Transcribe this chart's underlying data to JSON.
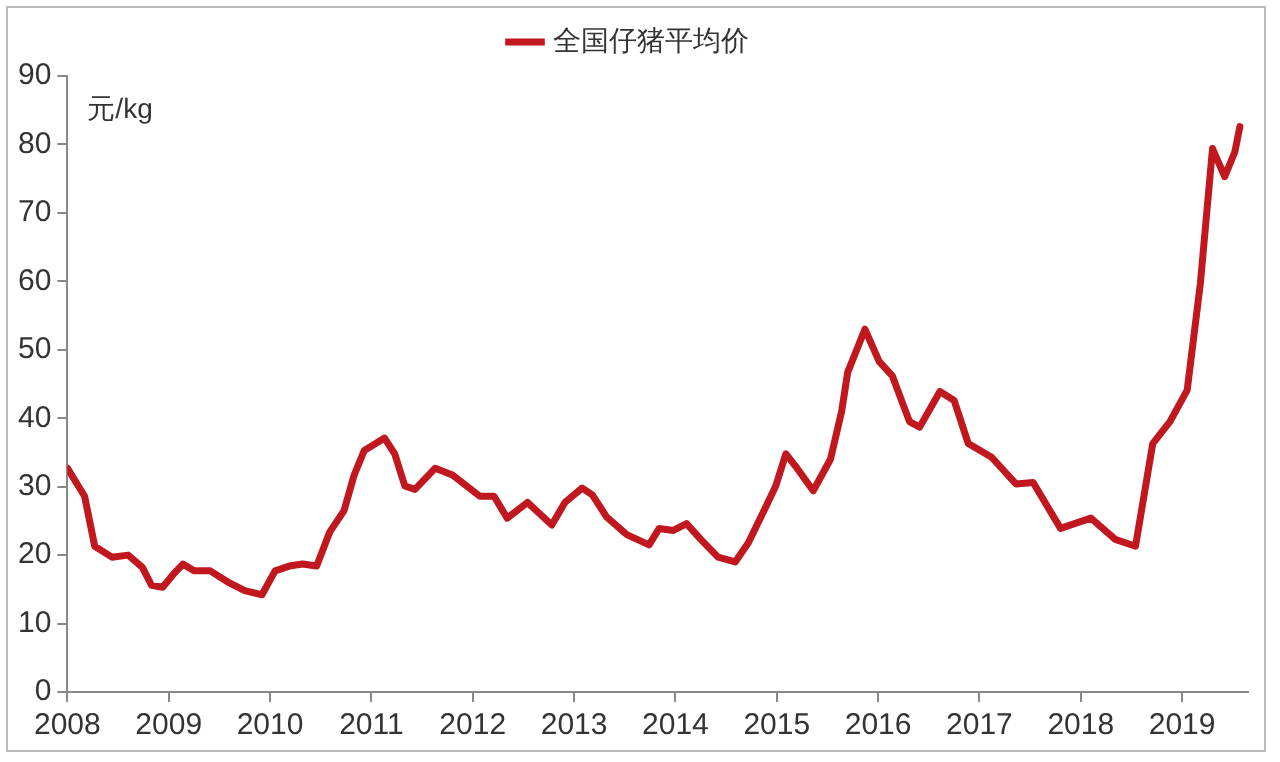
{
  "chart_data": {
    "type": "line",
    "ylabel": "元/kg",
    "legend": "top",
    "grid": false,
    "marker": "none",
    "line_style": "solid",
    "xlim": [
      2008,
      2019.65
    ],
    "xticks": [
      2008,
      2009,
      2010,
      2011,
      2012,
      2013,
      2014,
      2015,
      2016,
      2017,
      2018,
      2019
    ],
    "ylim": [
      0,
      90
    ],
    "yticks": [
      0,
      10,
      20,
      30,
      40,
      50,
      60,
      70,
      80,
      90
    ],
    "x": [
      2008,
      2008.17,
      2008.27,
      2008.44,
      2008.6,
      2008.74,
      2008.83,
      2008.94,
      2009.04,
      2009.14,
      2009.25,
      2009.41,
      2009.58,
      2009.75,
      2009.92,
      2010.05,
      2010.19,
      2010.32,
      2010.46,
      2010.59,
      2010.73,
      2010.83,
      2010.93,
      2011.13,
      2011.23,
      2011.33,
      2011.43,
      2011.63,
      2011.8,
      2011.94,
      2012.07,
      2012.21,
      2012.34,
      2012.54,
      2012.78,
      2012.91,
      2013.08,
      2013.18,
      2013.32,
      2013.52,
      2013.74,
      2013.84,
      2013.98,
      2014.11,
      2014.25,
      2014.42,
      2014.59,
      2014.72,
      2014.89,
      2014.99,
      2015.09,
      2015.2,
      2015.36,
      2015.53,
      2015.64,
      2015.7,
      2015.87,
      2016.01,
      2016.14,
      2016.31,
      2016.41,
      2016.61,
      2016.75,
      2016.89,
      2017.12,
      2017.36,
      2017.53,
      2017.8,
      2018.1,
      2018.34,
      2018.54,
      2018.71,
      2018.88,
      2019.05,
      2019.18,
      2019.3,
      2019.42,
      2019.52,
      2019.57
    ],
    "series": [
      {
        "name": "全国仔猪平均价",
        "color": "#c0181e",
        "values": [
          32.7,
          28.6,
          21.3,
          19.7,
          20,
          18.2,
          15.6,
          15.3,
          17.1,
          18.7,
          17.7,
          17.7,
          16.1,
          14.8,
          14.2,
          17.7,
          18.4,
          18.7,
          18.4,
          23.4,
          26.5,
          31.7,
          35.3,
          37.1,
          34.8,
          30.1,
          29.6,
          32.7,
          31.7,
          30.1,
          28.6,
          28.6,
          25.4,
          27.7,
          24.4,
          27.7,
          29.8,
          28.8,
          25.6,
          23,
          21.5,
          23.9,
          23.6,
          24.6,
          22.3,
          19.7,
          19,
          21.8,
          27,
          30.1,
          34.8,
          32.7,
          29.4,
          34,
          41,
          46.7,
          53,
          48.3,
          46.2,
          39.5,
          38.7,
          43.9,
          42.6,
          36.3,
          34.3,
          30.4,
          30.6,
          23.9,
          25.4,
          22.3,
          21.3,
          36.3,
          39.5,
          44.1,
          59.7,
          79.4,
          75.3,
          78.9,
          82.6
        ]
      }
    ]
  }
}
